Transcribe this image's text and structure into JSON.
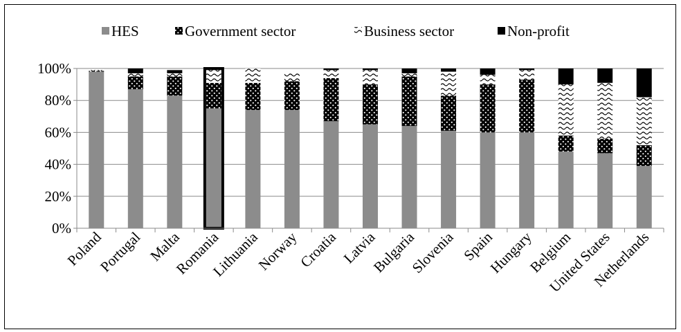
{
  "chart_data": {
    "type": "bar",
    "stacked": true,
    "categories": [
      "Poland",
      "Portugal",
      "Malta",
      "Romania",
      "Lithuania",
      "Norway",
      "Croatia",
      "Latvia",
      "Bulgaria",
      "Slovenia",
      "Spain",
      "Hungary",
      "Belgium",
      "United States",
      "Netherlands"
    ],
    "series": [
      {
        "name": "HES",
        "color": "#8c8c8c",
        "pattern": "solid",
        "values": [
          98,
          87,
          83,
          75,
          74,
          74,
          67,
          65,
          64,
          61,
          60,
          60,
          48,
          47,
          39
        ]
      },
      {
        "name": "Government sector",
        "color": "#000000",
        "pattern": "dots",
        "values": [
          0.5,
          8,
          12,
          16,
          17,
          18,
          27,
          25,
          31,
          22,
          30,
          33,
          10,
          9,
          13
        ]
      },
      {
        "name": "Business sector",
        "color": "#ffffff",
        "pattern": "waves",
        "values": [
          0.5,
          2,
          2,
          8,
          9,
          6,
          5,
          9,
          2,
          15,
          6,
          6,
          32,
          35,
          30
        ]
      },
      {
        "name": "Non-profit",
        "color": "#000000",
        "pattern": "solid",
        "values": [
          0,
          3,
          2,
          1,
          0,
          0,
          1,
          1,
          3,
          2,
          4,
          1,
          10,
          9,
          18
        ]
      }
    ],
    "ylim": [
      0,
      100
    ],
    "yticks": [
      "0%",
      "20%",
      "40%",
      "60%",
      "80%",
      "100%"
    ],
    "xlabel": "",
    "ylabel": "",
    "title": "",
    "grid": true,
    "legend_position": "top",
    "highlighted_category": "Romania"
  }
}
